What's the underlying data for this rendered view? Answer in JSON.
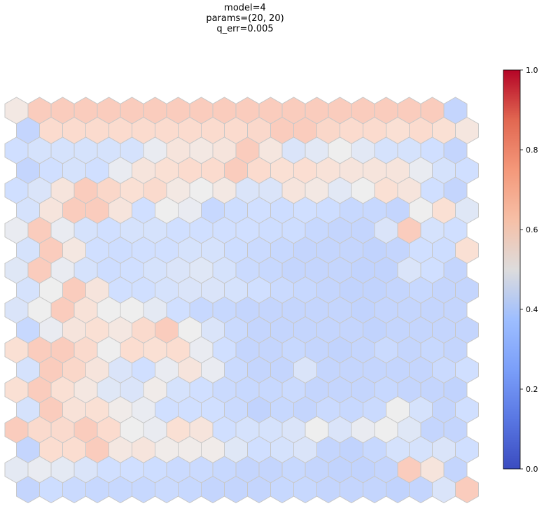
{
  "chart_data": {
    "type": "heatmap",
    "title_lines": [
      "model=4",
      "params=(20, 20)",
      "q_err=0.005"
    ],
    "grid": "hexagonal",
    "rows": 20,
    "cols": 20,
    "colormap": "coolwarm",
    "clim": [
      0.0,
      1.0
    ],
    "colorbar_ticks": [
      "0.0",
      "0.2",
      "0.4",
      "0.6",
      "0.8",
      "1.0"
    ],
    "values": [
      [
        0.55,
        0.75,
        0.75,
        0.75,
        0.75,
        0.75,
        0.75,
        0.75,
        0.75,
        0.75,
        0.75,
        0.75,
        0.75,
        0.75,
        0.75,
        0.75,
        0.75,
        0.75,
        0.75,
        0.3
      ],
      [
        0.3,
        0.65,
        0.65,
        0.65,
        0.65,
        0.65,
        0.65,
        0.65,
        0.65,
        0.65,
        0.67,
        0.75,
        0.75,
        0.68,
        0.65,
        0.65,
        0.62,
        0.65,
        0.62,
        0.57
      ],
      [
        0.38,
        0.4,
        0.4,
        0.4,
        0.4,
        0.4,
        0.48,
        0.58,
        0.55,
        0.58,
        0.75,
        0.57,
        0.42,
        0.45,
        0.5,
        0.45,
        0.4,
        0.4,
        0.38,
        0.3
      ],
      [
        0.3,
        0.38,
        0.4,
        0.38,
        0.48,
        0.58,
        0.62,
        0.65,
        0.65,
        0.75,
        0.65,
        0.62,
        0.63,
        0.6,
        0.58,
        0.58,
        0.58,
        0.48,
        0.4,
        0.38
      ],
      [
        0.38,
        0.42,
        0.58,
        0.75,
        0.68,
        0.62,
        0.66,
        0.55,
        0.5,
        0.55,
        0.42,
        0.42,
        0.58,
        0.55,
        0.45,
        0.5,
        0.62,
        0.58,
        0.38,
        0.3
      ],
      [
        0.4,
        0.58,
        0.75,
        0.75,
        0.58,
        0.38,
        0.5,
        0.48,
        0.32,
        0.36,
        0.38,
        0.36,
        0.38,
        0.36,
        0.32,
        0.32,
        0.3,
        0.5,
        0.62,
        0.44
      ],
      [
        0.48,
        0.75,
        0.48,
        0.4,
        0.38,
        0.4,
        0.4,
        0.38,
        0.38,
        0.38,
        0.38,
        0.36,
        0.36,
        0.32,
        0.3,
        0.3,
        0.42,
        0.75,
        0.4,
        0.38
      ],
      [
        0.4,
        0.75,
        0.56,
        0.38,
        0.36,
        0.38,
        0.38,
        0.4,
        0.4,
        0.36,
        0.34,
        0.32,
        0.3,
        0.3,
        0.3,
        0.28,
        0.3,
        0.38,
        0.36,
        0.62
      ],
      [
        0.44,
        0.75,
        0.48,
        0.4,
        0.36,
        0.38,
        0.4,
        0.42,
        0.44,
        0.4,
        0.34,
        0.32,
        0.3,
        0.3,
        0.3,
        0.28,
        0.28,
        0.42,
        0.38,
        0.3
      ],
      [
        0.4,
        0.5,
        0.75,
        0.58,
        0.38,
        0.38,
        0.4,
        0.42,
        0.42,
        0.4,
        0.38,
        0.34,
        0.32,
        0.3,
        0.28,
        0.28,
        0.3,
        0.32,
        0.3,
        0.3
      ],
      [
        0.42,
        0.5,
        0.75,
        0.6,
        0.5,
        0.5,
        0.46,
        0.38,
        0.32,
        0.32,
        0.3,
        0.3,
        0.3,
        0.3,
        0.3,
        0.28,
        0.3,
        0.3,
        0.3,
        0.3
      ],
      [
        0.32,
        0.48,
        0.58,
        0.62,
        0.56,
        0.66,
        0.75,
        0.5,
        0.42,
        0.34,
        0.3,
        0.3,
        0.3,
        0.3,
        0.3,
        0.28,
        0.3,
        0.3,
        0.3,
        0.3
      ],
      [
        0.62,
        0.75,
        0.75,
        0.66,
        0.5,
        0.64,
        0.62,
        0.64,
        0.48,
        0.38,
        0.3,
        0.3,
        0.32,
        0.3,
        0.28,
        0.3,
        0.34,
        0.3,
        0.32,
        0.3
      ],
      [
        0.4,
        0.75,
        0.68,
        0.58,
        0.42,
        0.38,
        0.48,
        0.58,
        0.48,
        0.34,
        0.3,
        0.3,
        0.42,
        0.3,
        0.3,
        0.3,
        0.3,
        0.3,
        0.34,
        0.38
      ],
      [
        0.62,
        0.75,
        0.62,
        0.56,
        0.44,
        0.42,
        0.52,
        0.4,
        0.38,
        0.34,
        0.32,
        0.32,
        0.34,
        0.3,
        0.3,
        0.3,
        0.32,
        0.3,
        0.3,
        0.28
      ],
      [
        0.4,
        0.75,
        0.6,
        0.62,
        0.52,
        0.48,
        0.38,
        0.38,
        0.38,
        0.34,
        0.28,
        0.32,
        0.3,
        0.34,
        0.32,
        0.34,
        0.5,
        0.4,
        0.3,
        0.38
      ],
      [
        0.75,
        0.66,
        0.66,
        0.75,
        0.65,
        0.5,
        0.48,
        0.62,
        0.58,
        0.38,
        0.4,
        0.4,
        0.42,
        0.5,
        0.42,
        0.48,
        0.5,
        0.44,
        0.3,
        0.3
      ],
      [
        0.3,
        0.64,
        0.64,
        0.75,
        0.56,
        0.58,
        0.52,
        0.52,
        0.52,
        0.44,
        0.38,
        0.4,
        0.42,
        0.3,
        0.28,
        0.32,
        0.4,
        0.4,
        0.42,
        0.38
      ],
      [
        0.46,
        0.48,
        0.46,
        0.42,
        0.38,
        0.38,
        0.36,
        0.34,
        0.34,
        0.32,
        0.3,
        0.3,
        0.32,
        0.3,
        0.28,
        0.28,
        0.3,
        0.75,
        0.58,
        0.3
      ],
      [
        0.3,
        0.36,
        0.34,
        0.32,
        0.32,
        0.32,
        0.34,
        0.32,
        0.3,
        0.3,
        0.3,
        0.32,
        0.32,
        0.3,
        0.3,
        0.3,
        0.28,
        0.3,
        0.42,
        0.75
      ]
    ]
  }
}
